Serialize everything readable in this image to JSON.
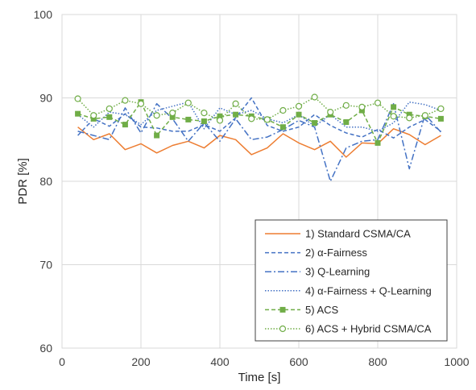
{
  "chart_data": {
    "type": "line",
    "xlabel": "Time  [s]",
    "ylabel": "PDR [%]",
    "xlim": [
      0,
      1000
    ],
    "ylim": [
      60,
      100
    ],
    "xticks": [
      0,
      200,
      400,
      600,
      800,
      1000
    ],
    "yticks": [
      60,
      70,
      80,
      90,
      100
    ],
    "xtick_labels": [
      "0",
      "200",
      "400",
      "600",
      "800",
      "1000"
    ],
    "ytick_labels": [
      "60",
      "70",
      "80",
      "90",
      "100"
    ],
    "grid": true,
    "legend_position": "bottom-right",
    "x": [
      40,
      80,
      120,
      160,
      200,
      240,
      280,
      320,
      360,
      400,
      440,
      480,
      520,
      560,
      600,
      640,
      680,
      720,
      760,
      800,
      840,
      880,
      920,
      960
    ],
    "series": [
      {
        "name": "1) Standard CSMA/CA",
        "color": "#ED7D31",
        "dash": "solid",
        "marker": "none",
        "values": [
          86.5,
          85.0,
          85.7,
          83.8,
          84.5,
          83.4,
          84.3,
          84.8,
          84.0,
          85.5,
          85.0,
          83.2,
          84.0,
          85.7,
          84.6,
          83.8,
          84.8,
          82.9,
          84.6,
          84.5,
          86.3,
          85.6,
          84.4,
          85.5
        ]
      },
      {
        "name": "2) α-Fairness",
        "color": "#4472C4",
        "dash": "dashed",
        "marker": "none",
        "values": [
          85.5,
          87.5,
          86.6,
          88.1,
          86.5,
          86.4,
          86.0,
          86.0,
          86.8,
          86.0,
          87.6,
          90.0,
          86.7,
          86.0,
          86.5,
          88.0,
          86.7,
          85.8,
          85.3,
          86.2,
          85.2,
          86.5,
          87.4,
          86.0
        ]
      },
      {
        "name": "3) Q-Learning",
        "color": "#4472C4",
        "dash": "dashdot",
        "marker": "none",
        "values": [
          86.0,
          85.5,
          85.0,
          88.8,
          85.8,
          89.3,
          87.5,
          84.8,
          87.0,
          84.8,
          87.5,
          85.0,
          85.3,
          86.2,
          87.3,
          86.5,
          80.0,
          84.0,
          84.8,
          85.0,
          89.3,
          81.5,
          88.0,
          85.9
        ]
      },
      {
        "name": "4) α-Fairness + Q-Learning",
        "color": "#4472C4",
        "dash": "dotted",
        "marker": "none",
        "values": [
          88.0,
          86.5,
          88.3,
          88.0,
          86.8,
          88.5,
          89.0,
          89.5,
          86.3,
          88.8,
          88.0,
          88.5,
          87.5,
          87.0,
          88.0,
          86.6,
          88.0,
          86.5,
          86.5,
          86.0,
          87.0,
          89.5,
          89.2,
          88.5
        ]
      },
      {
        "name": "5) ACS",
        "color": "#70AD47",
        "dash": "dashed",
        "marker": "square",
        "values": [
          88.1,
          87.5,
          87.7,
          86.8,
          89.5,
          85.5,
          87.7,
          87.4,
          87.2,
          87.8,
          88.0,
          87.8,
          87.4,
          86.5,
          88.0,
          87.0,
          88.0,
          87.1,
          88.5,
          84.6,
          88.9,
          88.0,
          87.8,
          87.5
        ]
      },
      {
        "name": "6) ACS + Hybrid CSMA/CA",
        "color": "#70AD47",
        "dash": "dotted",
        "marker": "circle-open",
        "values": [
          89.9,
          87.9,
          88.7,
          89.7,
          89.3,
          87.9,
          88.2,
          89.4,
          88.2,
          87.3,
          89.3,
          87.5,
          87.4,
          88.5,
          89.0,
          90.1,
          88.3,
          89.1,
          88.9,
          89.4,
          87.8,
          87.6,
          87.9,
          88.7
        ]
      }
    ]
  }
}
